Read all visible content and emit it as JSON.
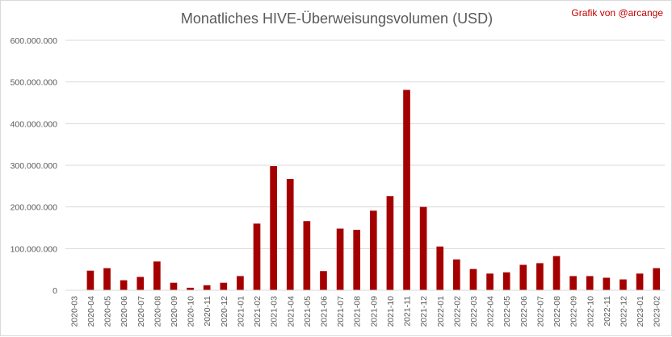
{
  "header": {
    "credit": "Grafik von @arcange"
  },
  "chart_data": {
    "type": "bar",
    "title": "Monatliches HIVE-Überweisungsvolumen (USD)",
    "xlabel": "",
    "ylabel": "",
    "ylim": [
      0,
      600000000
    ],
    "y_ticks": [
      "0",
      "100.000.000",
      "200.000.000",
      "300.000.000",
      "400.000.000",
      "500.000.000",
      "600.000.000"
    ],
    "y_tick_values": [
      0,
      100000000,
      200000000,
      300000000,
      400000000,
      500000000,
      600000000
    ],
    "grid": true,
    "legend": "none",
    "bar_color": "#a50000",
    "categories": [
      "2020-03",
      "2020-04",
      "2020-05",
      "2020-06",
      "2020-07",
      "2020-08",
      "2020-09",
      "2020-10",
      "2020-11",
      "2020-12",
      "2021-01",
      "2021-02",
      "2021-03",
      "2021-04",
      "2021-05",
      "2021-06",
      "2021-07",
      "2021-08",
      "2021-09",
      "2021-10",
      "2021-11",
      "2021-12",
      "2022-01",
      "2022-02",
      "2022-03",
      "2022-04",
      "2022-05",
      "2022-06",
      "2022-07",
      "2022-08",
      "2022-09",
      "2022-10",
      "2022-11",
      "2022-12",
      "2023-01",
      "2023-02"
    ],
    "values": [
      0,
      47000000,
      53000000,
      24000000,
      32000000,
      69000000,
      18000000,
      6000000,
      12000000,
      18000000,
      34000000,
      160000000,
      298000000,
      267000000,
      166000000,
      46000000,
      148000000,
      145000000,
      191000000,
      226000000,
      481000000,
      200000000,
      105000000,
      74000000,
      51000000,
      40000000,
      43000000,
      61000000,
      65000000,
      82000000,
      34000000,
      34000000,
      30000000,
      26000000,
      40000000,
      53000000
    ]
  }
}
